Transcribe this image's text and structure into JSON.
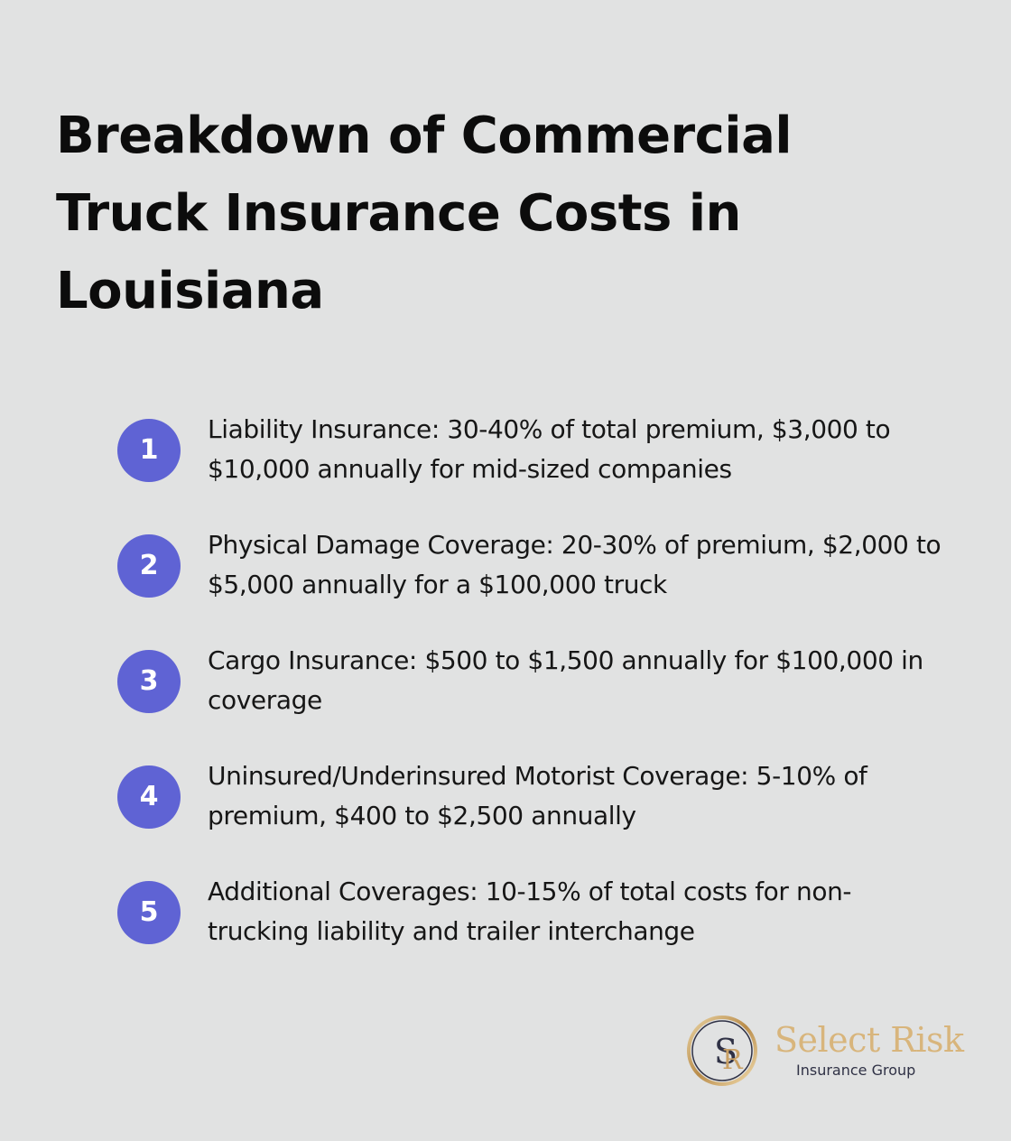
{
  "title": "Breakdown of Commercial Truck Insurance Costs in Louisiana",
  "items": [
    {
      "number": "1",
      "text": "Liability Insurance: 30-40% of total premium, $3,000 to $10,000 annually for mid-sized companies"
    },
    {
      "number": "2",
      "text": "Physical Damage Coverage: 20-30% of premium, $2,000 to $5,000 annually for a $100,000 truck"
    },
    {
      "number": "3",
      "text": "Cargo Insurance: $500 to $1,500 annually for $100,000 in coverage"
    },
    {
      "number": "4",
      "text": "Uninsured/Underinsured Motorist Coverage: 5-10% of premium, $400 to $2,500 annually"
    },
    {
      "number": "5",
      "text": "Additional Coverages: 10-15% of total costs for non-trucking liability and trailer interchange"
    }
  ],
  "logo": {
    "name": "Select Risk",
    "subtitle": "Insurance Group",
    "monogram": "SR"
  },
  "colors": {
    "background": "#e1e2e2",
    "accent": "#5f63d4",
    "logo_gold": "#d8b57c",
    "logo_navy": "#2f3145"
  }
}
